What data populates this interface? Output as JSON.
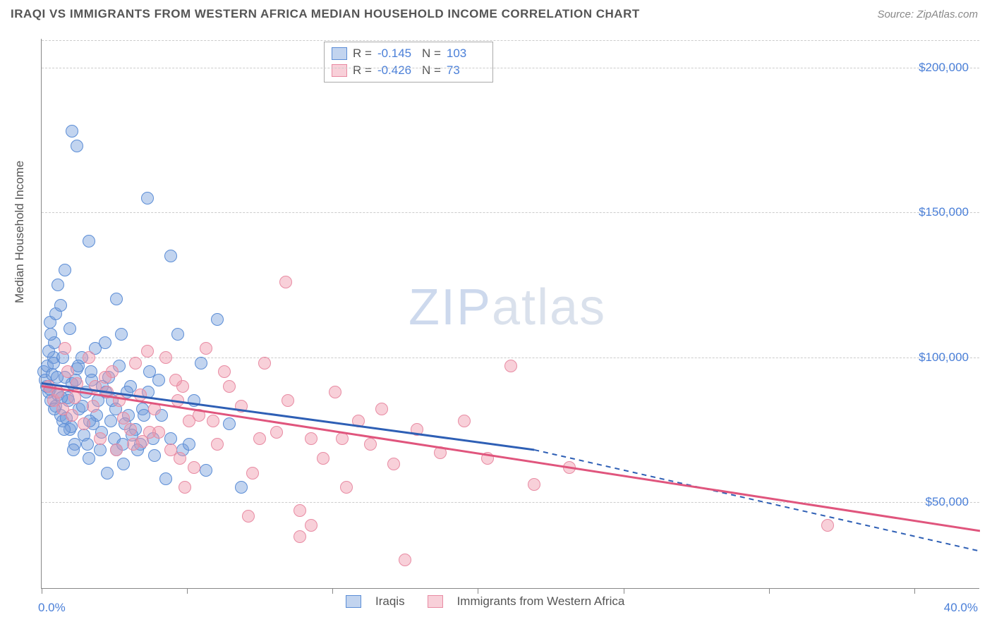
{
  "header": {
    "title": "IRAQI VS IMMIGRANTS FROM WESTERN AFRICA MEDIAN HOUSEHOLD INCOME CORRELATION CHART",
    "source": "Source: ZipAtlas.com"
  },
  "chart": {
    "type": "scatter",
    "ylabel": "Median Household Income",
    "xlim": [
      0,
      40
    ],
    "ylim": [
      20000,
      210000
    ],
    "x_tick_labels": {
      "min": "0.0%",
      "max": "40.0%"
    },
    "x_tick_positions_pct": [
      0,
      15.5,
      31,
      46.5,
      62,
      77.5,
      93
    ],
    "y_ticks": [
      {
        "value": 50000,
        "label": "$50,000"
      },
      {
        "value": 100000,
        "label": "$100,000"
      },
      {
        "value": 150000,
        "label": "$150,000"
      },
      {
        "value": 200000,
        "label": "$200,000"
      }
    ],
    "y0_gridline_value": 210000,
    "point_radius": 9,
    "series": [
      {
        "name": "Iraqis",
        "fill": "rgba(120,160,220,0.45)",
        "stroke": "#5b8dd6",
        "r_label": "R =",
        "r_value": "-0.145",
        "n_label": "N =",
        "n_value": "103",
        "trend": {
          "x1": 0,
          "y1": 91000,
          "x2": 21,
          "y2": 68000,
          "x2_ext": 40,
          "y2_ext": 33000,
          "color": "#2e5fb5",
          "dash_after_x": 21
        },
        "points": [
          [
            0.1,
            95000
          ],
          [
            0.2,
            90000
          ],
          [
            0.3,
            88000
          ],
          [
            0.15,
            92000
          ],
          [
            0.4,
            85000
          ],
          [
            0.25,
            97000
          ],
          [
            0.35,
            89000
          ],
          [
            0.5,
            100000
          ],
          [
            0.6,
            83000
          ],
          [
            0.45,
            94000
          ],
          [
            0.7,
            87000
          ],
          [
            0.3,
            102000
          ],
          [
            0.55,
            105000
          ],
          [
            0.8,
            80000
          ],
          [
            0.4,
            108000
          ],
          [
            0.9,
            78000
          ],
          [
            1.0,
            93000
          ],
          [
            0.35,
            112000
          ],
          [
            1.1,
            86000
          ],
          [
            0.5,
            98000
          ],
          [
            1.2,
            75000
          ],
          [
            1.3,
            91000
          ],
          [
            0.6,
            115000
          ],
          [
            1.4,
            70000
          ],
          [
            1.5,
            96000
          ],
          [
            1.0,
            130000
          ],
          [
            1.6,
            82000
          ],
          [
            1.7,
            100000
          ],
          [
            1.3,
            178000
          ],
          [
            1.8,
            73000
          ],
          [
            1.5,
            173000
          ],
          [
            1.9,
            88000
          ],
          [
            2.0,
            65000
          ],
          [
            2.1,
            95000
          ],
          [
            2.2,
            77000
          ],
          [
            2.3,
            103000
          ],
          [
            0.8,
            118000
          ],
          [
            2.5,
            68000
          ],
          [
            2.6,
            90000
          ],
          [
            2.0,
            140000
          ],
          [
            2.8,
            60000
          ],
          [
            3.2,
            120000
          ],
          [
            3.0,
            85000
          ],
          [
            3.1,
            72000
          ],
          [
            3.3,
            97000
          ],
          [
            3.5,
            63000
          ],
          [
            3.7,
            80000
          ],
          [
            4.0,
            75000
          ],
          [
            4.5,
            155000
          ],
          [
            4.2,
            70000
          ],
          [
            4.8,
            66000
          ],
          [
            5.0,
            92000
          ],
          [
            5.5,
            135000
          ],
          [
            5.3,
            58000
          ],
          [
            5.5,
            72000
          ],
          [
            5.8,
            108000
          ],
          [
            6.0,
            68000
          ],
          [
            6.5,
            85000
          ],
          [
            7.0,
            61000
          ],
          [
            7.5,
            113000
          ],
          [
            8.0,
            77000
          ],
          [
            8.5,
            55000
          ],
          [
            2.7,
            105000
          ],
          [
            3.2,
            68000
          ],
          [
            3.8,
            90000
          ],
          [
            4.3,
            82000
          ],
          [
            4.6,
            95000
          ],
          [
            1.2,
            110000
          ],
          [
            2.4,
            85000
          ],
          [
            0.7,
            125000
          ],
          [
            3.4,
            108000
          ],
          [
            0.9,
            100000
          ],
          [
            1.15,
            85000
          ],
          [
            1.45,
            92000
          ],
          [
            0.65,
            93000
          ],
          [
            0.85,
            86000
          ],
          [
            1.05,
            79000
          ],
          [
            1.25,
            76000
          ],
          [
            1.55,
            97000
          ],
          [
            1.75,
            83000
          ],
          [
            1.95,
            70000
          ],
          [
            2.15,
            92000
          ],
          [
            2.35,
            80000
          ],
          [
            2.55,
            74000
          ],
          [
            2.75,
            88000
          ],
          [
            2.95,
            78000
          ],
          [
            3.15,
            82000
          ],
          [
            3.45,
            70000
          ],
          [
            3.65,
            88000
          ],
          [
            3.85,
            73000
          ],
          [
            4.1,
            68000
          ],
          [
            4.35,
            80000
          ],
          [
            4.55,
            88000
          ],
          [
            4.75,
            72000
          ],
          [
            5.1,
            80000
          ],
          [
            6.3,
            70000
          ],
          [
            1.35,
            68000
          ],
          [
            2.05,
            78000
          ],
          [
            2.85,
            93000
          ],
          [
            0.95,
            75000
          ],
          [
            3.55,
            77000
          ],
          [
            0.55,
            82000
          ],
          [
            6.8,
            98000
          ]
        ]
      },
      {
        "name": "Immigrants from Western Africa",
        "fill": "rgba(240,150,170,0.45)",
        "stroke": "#e88ba3",
        "r_label": "R =",
        "r_value": "-0.426",
        "n_label": "N =",
        "n_value": "73",
        "trend": {
          "x1": 0,
          "y1": 90000,
          "x2": 40,
          "y2": 40000,
          "color": "#e0557d"
        },
        "points": [
          [
            0.3,
            90000
          ],
          [
            0.5,
            85000
          ],
          [
            0.7,
            88000
          ],
          [
            0.9,
            82000
          ],
          [
            1.1,
            95000
          ],
          [
            1.3,
            80000
          ],
          [
            1.5,
            91000
          ],
          [
            1.8,
            77000
          ],
          [
            2.0,
            100000
          ],
          [
            2.2,
            83000
          ],
          [
            2.5,
            72000
          ],
          [
            2.8,
            88000
          ],
          [
            3.0,
            95000
          ],
          [
            3.2,
            68000
          ],
          [
            3.5,
            79000
          ],
          [
            3.8,
            75000
          ],
          [
            4.0,
            98000
          ],
          [
            4.3,
            71000
          ],
          [
            4.5,
            102000
          ],
          [
            4.8,
            82000
          ],
          [
            5.0,
            74000
          ],
          [
            5.3,
            100000
          ],
          [
            5.5,
            68000
          ],
          [
            5.8,
            85000
          ],
          [
            6.0,
            90000
          ],
          [
            6.5,
            62000
          ],
          [
            7.0,
            103000
          ],
          [
            7.3,
            78000
          ],
          [
            7.5,
            70000
          ],
          [
            8.0,
            90000
          ],
          [
            8.5,
            83000
          ],
          [
            9.0,
            60000
          ],
          [
            9.5,
            98000
          ],
          [
            10.0,
            74000
          ],
          [
            10.5,
            85000
          ],
          [
            11.0,
            47000
          ],
          [
            10.4,
            126000
          ],
          [
            11.5,
            72000
          ],
          [
            12.0,
            65000
          ],
          [
            12.5,
            88000
          ],
          [
            13.0,
            55000
          ],
          [
            13.5,
            78000
          ],
          [
            14.0,
            70000
          ],
          [
            14.5,
            82000
          ],
          [
            15.0,
            63000
          ],
          [
            15.5,
            30000
          ],
          [
            16.0,
            75000
          ],
          [
            17.0,
            67000
          ],
          [
            18.0,
            78000
          ],
          [
            19.0,
            65000
          ],
          [
            20.0,
            97000
          ],
          [
            21.0,
            56000
          ],
          [
            22.5,
            62000
          ],
          [
            33.5,
            42000
          ],
          [
            11.0,
            38000
          ],
          [
            11.5,
            42000
          ],
          [
            4.2,
            87000
          ],
          [
            5.7,
            92000
          ],
          [
            6.3,
            78000
          ],
          [
            7.8,
            95000
          ],
          [
            2.3,
            90000
          ],
          [
            1.0,
            103000
          ],
          [
            1.4,
            86000
          ],
          [
            2.7,
            93000
          ],
          [
            3.3,
            85000
          ],
          [
            3.9,
            70000
          ],
          [
            4.6,
            74000
          ],
          [
            5.9,
            65000
          ],
          [
            6.7,
            80000
          ],
          [
            8.8,
            45000
          ],
          [
            9.3,
            72000
          ],
          [
            12.8,
            72000
          ],
          [
            6.1,
            55000
          ]
        ]
      }
    ],
    "watermark": {
      "part1": "ZIP",
      "part2": "atlas"
    },
    "background_color": "#ffffff",
    "grid_color": "#cccccc",
    "axis_color": "#888888",
    "tick_label_color": "#4a7fd8"
  },
  "legend": {
    "series1_label": "Iraqis",
    "series2_label": "Immigrants from Western Africa"
  }
}
